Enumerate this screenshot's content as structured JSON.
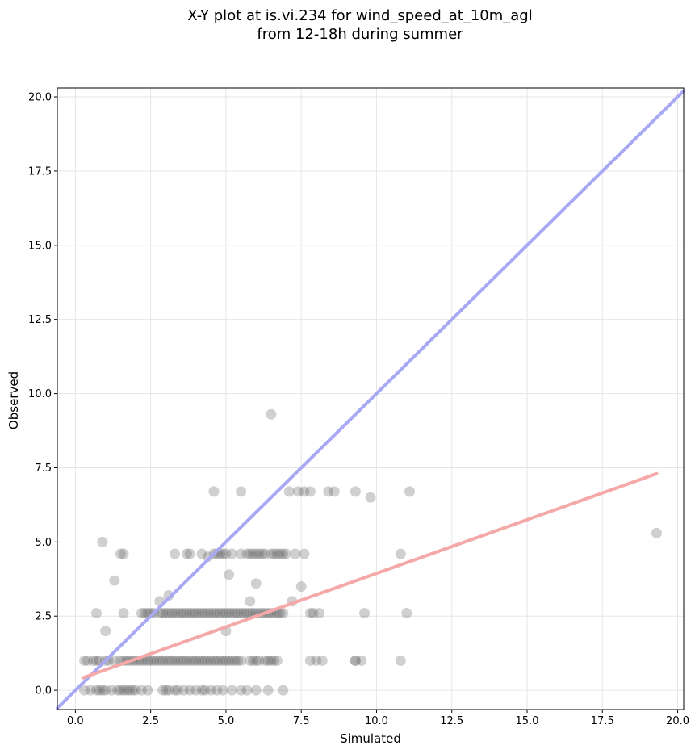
{
  "chart_data": {
    "type": "scatter",
    "title_line1": "X-Y plot at is.vi.234 for wind_speed_at_10m_agl",
    "title_line2": "from 12-18h during summer",
    "xlabel": "Simulated",
    "ylabel": "Observed",
    "xlim": [
      -0.6,
      20.2
    ],
    "ylim": [
      -0.65,
      20.3
    ],
    "xticks": [
      "0.0",
      "2.5",
      "5.0",
      "7.5",
      "10.0",
      "12.5",
      "15.0",
      "17.5",
      "20.0"
    ],
    "yticks": [
      "0.0",
      "2.5",
      "5.0",
      "7.5",
      "10.0",
      "12.5",
      "15.0",
      "17.5",
      "20.0"
    ],
    "grid": true,
    "colors": {
      "points": "#555555",
      "identity_line": "#a8a8f5",
      "fit_line": "#f5a8a8"
    },
    "identity_line": {
      "x": [
        -0.6,
        20.2
      ],
      "y": [
        -0.6,
        20.2
      ]
    },
    "fit_line": {
      "x": [
        0.25,
        19.3
      ],
      "y": [
        0.42,
        7.3
      ]
    },
    "points": {
      "x": [
        0.3,
        0.5,
        0.7,
        0.8,
        0.9,
        1.0,
        1.2,
        1.4,
        1.5,
        1.6,
        1.7,
        1.8,
        1.9,
        2.0,
        2.2,
        2.4,
        2.9,
        3.0,
        3.1,
        3.3,
        3.4,
        3.6,
        3.8,
        4.0,
        4.2,
        4.3,
        4.5,
        4.7,
        4.9,
        5.2,
        5.5,
        5.7,
        6.0,
        6.4,
        6.9,
        0.3,
        0.4,
        0.6,
        0.7,
        0.8,
        1.0,
        1.1,
        1.3,
        1.5,
        1.6,
        1.7,
        1.8,
        1.9,
        2.0,
        2.1,
        2.2,
        2.3,
        2.4,
        2.5,
        2.6,
        2.7,
        2.8,
        2.9,
        3.0,
        3.1,
        3.2,
        3.3,
        3.4,
        3.5,
        3.6,
        3.7,
        3.8,
        3.9,
        4.0,
        4.1,
        4.2,
        4.3,
        4.4,
        4.5,
        4.6,
        4.7,
        4.8,
        4.9,
        5.0,
        5.1,
        5.2,
        5.3,
        5.4,
        5.5,
        5.8,
        5.9,
        6.0,
        6.1,
        6.3,
        6.4,
        6.5,
        6.6,
        6.7,
        7.8,
        8.0,
        8.2,
        9.3,
        9.5,
        10.8,
        0.7,
        1.6,
        2.2,
        2.3,
        2.4,
        2.5,
        2.6,
        2.8,
        2.9,
        3.0,
        3.1,
        3.2,
        3.3,
        3.4,
        3.5,
        3.6,
        3.7,
        3.8,
        3.9,
        4.0,
        4.1,
        4.2,
        4.3,
        4.4,
        4.5,
        4.6,
        4.7,
        4.8,
        4.9,
        5.0,
        5.1,
        5.2,
        5.3,
        5.4,
        5.5,
        5.6,
        5.7,
        5.8,
        5.9,
        6.0,
        6.1,
        6.2,
        6.3,
        6.4,
        6.5,
        6.6,
        6.7,
        6.8,
        6.9,
        7.8,
        7.9,
        8.1,
        9.6,
        11.0,
        1.5,
        1.6,
        3.3,
        3.7,
        3.8,
        4.2,
        4.4,
        4.6,
        4.7,
        4.8,
        4.9,
        5.0,
        5.2,
        5.5,
        5.7,
        5.8,
        5.9,
        6.0,
        6.1,
        6.2,
        6.3,
        6.5,
        6.6,
        6.7,
        6.8,
        6.9,
        7.0,
        7.3,
        7.6,
        10.8,
        4.6,
        5.5,
        7.1,
        7.4,
        7.6,
        7.8,
        8.4,
        8.6,
        9.3,
        9.8,
        11.1,
        0.9,
        1.0,
        1.3,
        2.8,
        3.1,
        5.0,
        5.1,
        5.8,
        6.0,
        7.2,
        7.5,
        9.3,
        6.5,
        19.3
      ],
      "y": [
        0,
        0,
        0,
        0,
        0,
        0,
        0,
        0,
        0,
        0,
        0,
        0,
        0,
        0,
        0,
        0,
        0,
        0,
        0,
        0,
        0,
        0,
        0,
        0,
        0,
        0,
        0,
        0,
        0,
        0,
        0,
        0,
        0,
        0,
        0,
        1,
        1,
        1,
        1,
        1,
        1,
        1,
        1,
        1,
        1,
        1,
        1,
        1,
        1,
        1,
        1,
        1,
        1,
        1,
        1,
        1,
        1,
        1,
        1,
        1,
        1,
        1,
        1,
        1,
        1,
        1,
        1,
        1,
        1,
        1,
        1,
        1,
        1,
        1,
        1,
        1,
        1,
        1,
        1,
        1,
        1,
        1,
        1,
        1,
        1,
        1,
        1,
        1,
        1,
        1,
        1,
        1,
        1,
        1,
        1,
        1,
        1,
        1,
        1,
        2.6,
        2.6,
        2.6,
        2.6,
        2.6,
        2.6,
        2.6,
        2.6,
        2.6,
        2.6,
        2.6,
        2.6,
        2.6,
        2.6,
        2.6,
        2.6,
        2.6,
        2.6,
        2.6,
        2.6,
        2.6,
        2.6,
        2.6,
        2.6,
        2.6,
        2.6,
        2.6,
        2.6,
        2.6,
        2.6,
        2.6,
        2.6,
        2.6,
        2.6,
        2.6,
        2.6,
        2.6,
        2.6,
        2.6,
        2.6,
        2.6,
        2.6,
        2.6,
        2.6,
        2.6,
        2.6,
        2.6,
        2.6,
        2.6,
        2.6,
        2.6,
        2.6,
        2.6,
        2.6,
        4.6,
        4.6,
        4.6,
        4.6,
        4.6,
        4.6,
        4.5,
        4.6,
        4.6,
        4.6,
        4.6,
        4.6,
        4.6,
        4.6,
        4.6,
        4.6,
        4.6,
        4.6,
        4.6,
        4.6,
        4.6,
        4.6,
        4.6,
        4.6,
        4.6,
        4.6,
        4.6,
        4.6,
        4.6,
        4.6,
        6.7,
        6.7,
        6.7,
        6.7,
        6.7,
        6.7,
        6.7,
        6.7,
        6.7,
        6.5,
        6.7,
        5.0,
        2.0,
        3.7,
        3.0,
        3.2,
        2.0,
        3.9,
        3.0,
        3.6,
        3.0,
        3.5,
        1.0,
        9.3,
        5.3
      ]
    }
  }
}
